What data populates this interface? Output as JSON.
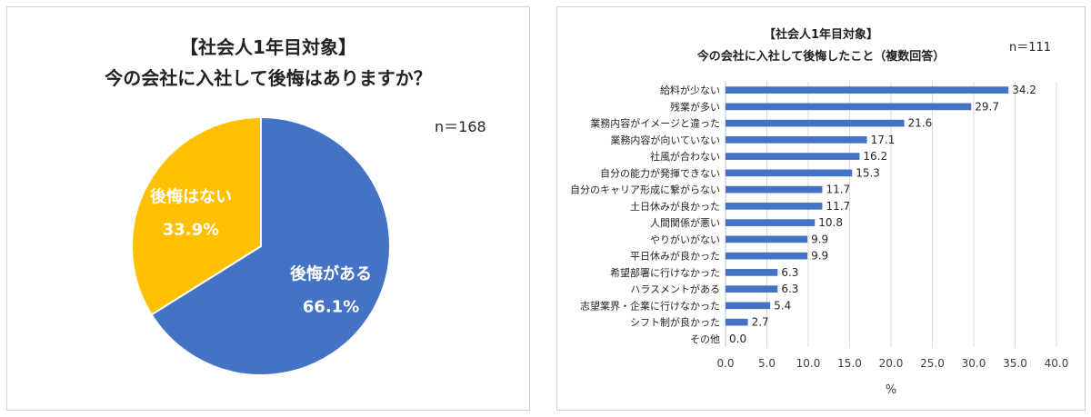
{
  "chart_data": [
    {
      "type": "pie",
      "title": "【社会人1年目対象】",
      "subtitle": "今の会社に入社して後悔はありますか？",
      "n_label": "n＝168",
      "slices": [
        {
          "label": "後悔がある",
          "value": 66.1,
          "display": "66.1%",
          "color": "#4472C4"
        },
        {
          "label": "後悔はない",
          "value": 33.9,
          "display": "33.9%",
          "color": "#FFC000"
        }
      ],
      "start": "12 o'clock",
      "direction": "clockwise"
    },
    {
      "type": "bar",
      "orientation": "horizontal",
      "title": "【社会人1年目対象】",
      "subtitle": "今の会社に入社して後悔したこと（複数回答）",
      "n_label": "n＝111",
      "xlabel": "%",
      "xlim": [
        0,
        40
      ],
      "xticks": [
        "0.0",
        "5.0",
        "10.0",
        "15.0",
        "20.0",
        "25.0",
        "30.0",
        "35.0",
        "40.0"
      ],
      "grid": "vertical",
      "color": "#4472C4",
      "categories": [
        "給料が少ない",
        "残業が多い",
        "業務内容がイメージと違った",
        "業務内容が向いていない",
        "社風が合わない",
        "自分の能力が発揮できない",
        "自分のキャリア形成に繋がらない",
        "土日休みが良かった",
        "人間関係が悪い",
        "やりがいがない",
        "平日休みが良かった",
        "希望部署に行けなかった",
        "ハラスメントがある",
        "志望業界・企業に行けなかった",
        "シフト制が良かった",
        "その他"
      ],
      "values": [
        34.2,
        29.7,
        21.6,
        17.1,
        16.2,
        15.3,
        11.7,
        11.7,
        10.8,
        9.9,
        9.9,
        6.3,
        6.3,
        5.4,
        2.7,
        0.0
      ],
      "value_labels": [
        "34.2",
        "29.7",
        "21.6",
        "17.1",
        "16.2",
        "15.3",
        "11.7",
        "11.7",
        "10.8",
        "9.9",
        "9.9",
        "6.3",
        "6.3",
        "5.4",
        "2.7",
        "0.0"
      ]
    }
  ]
}
